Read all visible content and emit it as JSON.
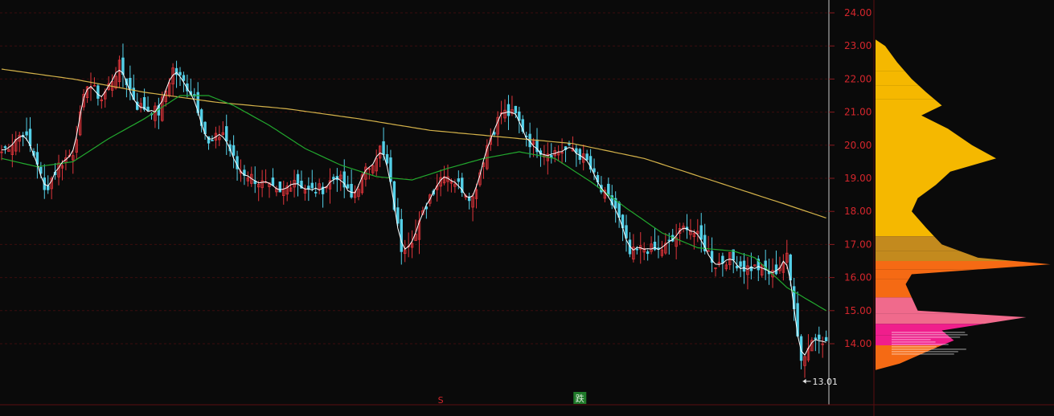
{
  "chart_data": {
    "type": "candlestick",
    "y_axis": {
      "ticks": [
        "24.00",
        "23.00",
        "22.00",
        "21.00",
        "20.00",
        "19.00",
        "18.00",
        "17.00",
        "16.00",
        "15.00",
        "14.00"
      ],
      "tick_values": [
        24,
        23,
        22,
        21,
        20,
        19,
        18,
        17,
        16,
        15,
        14
      ],
      "ylim": [
        13.0,
        24.3
      ],
      "grid": "dashed-horizontal"
    },
    "low_annotation": {
      "value": 13.01,
      "label": "13.01"
    },
    "markers": [
      {
        "label": "S",
        "color": "#d4262c",
        "bar_index": 123,
        "style": "text"
      },
      {
        "label": "跌",
        "color": "#d9e8d9",
        "bg": "#1f7a2a",
        "bar_index": 162,
        "style": "badge"
      }
    ],
    "colors": {
      "up_candle": "#e0353b",
      "down_candle": "#54d0e8",
      "close_line": "#ffffff",
      "ma_medium": "#22a82e",
      "ma_long": "#d4b24a",
      "axis_text": "#d4262c",
      "divider": "#c8c8c8"
    },
    "series": {
      "ma_long": {
        "points": [
          [
            0,
            22.3
          ],
          [
            20,
            22.0
          ],
          [
            40,
            21.6
          ],
          [
            60,
            21.3
          ],
          [
            80,
            21.1
          ],
          [
            100,
            20.8
          ],
          [
            120,
            20.45
          ],
          [
            140,
            20.25
          ],
          [
            160,
            20.05
          ],
          [
            180,
            19.6
          ],
          [
            200,
            18.9
          ],
          [
            220,
            18.2
          ],
          [
            231,
            17.8
          ]
        ]
      },
      "ma_medium": {
        "points": [
          [
            0,
            19.6
          ],
          [
            10,
            19.35
          ],
          [
            20,
            19.5
          ],
          [
            30,
            20.2
          ],
          [
            40,
            20.8
          ],
          [
            50,
            21.5
          ],
          [
            58,
            21.5
          ],
          [
            65,
            21.2
          ],
          [
            75,
            20.6
          ],
          [
            85,
            19.9
          ],
          [
            95,
            19.4
          ],
          [
            105,
            19.05
          ],
          [
            115,
            18.95
          ],
          [
            125,
            19.3
          ],
          [
            135,
            19.6
          ],
          [
            145,
            19.8
          ],
          [
            155,
            19.6
          ],
          [
            165,
            18.9
          ],
          [
            175,
            18.1
          ],
          [
            185,
            17.35
          ],
          [
            195,
            16.9
          ],
          [
            205,
            16.8
          ],
          [
            211,
            16.6
          ],
          [
            220,
            15.7
          ],
          [
            231,
            15.0
          ]
        ]
      },
      "profile_bins": [
        {
          "price": 23.0,
          "width": 0.08,
          "group": "gold"
        },
        {
          "price": 22.5,
          "width": 0.18,
          "group": "gold"
        },
        {
          "price": 22.0,
          "width": 0.3,
          "group": "gold"
        },
        {
          "price": 21.6,
          "width": 0.42,
          "group": "gold"
        },
        {
          "price": 21.2,
          "width": 0.55,
          "group": "gold"
        },
        {
          "price": 20.9,
          "width": 0.38,
          "group": "gold"
        },
        {
          "price": 20.5,
          "width": 0.6,
          "group": "gold"
        },
        {
          "price": 20.0,
          "width": 0.8,
          "group": "gold"
        },
        {
          "price": 19.6,
          "width": 1.0,
          "group": "gold"
        },
        {
          "price": 19.2,
          "width": 0.62,
          "group": "gold"
        },
        {
          "price": 18.8,
          "width": 0.5,
          "group": "gold"
        },
        {
          "price": 18.4,
          "width": 0.35,
          "group": "gold"
        },
        {
          "price": 18.0,
          "width": 0.3,
          "group": "gold"
        },
        {
          "price": 17.5,
          "width": 0.42,
          "group": "gold"
        },
        {
          "price": 17.0,
          "width": 0.55,
          "group": "tan"
        },
        {
          "price": 16.6,
          "width": 0.85,
          "group": "tan"
        },
        {
          "price": 16.4,
          "width": 1.45,
          "group": "orange"
        },
        {
          "price": 16.1,
          "width": 0.3,
          "group": "orange"
        },
        {
          "price": 15.8,
          "width": 0.25,
          "group": "orange"
        },
        {
          "price": 15.0,
          "width": 0.35,
          "group": "pink"
        },
        {
          "price": 14.8,
          "width": 1.25,
          "group": "pink"
        },
        {
          "price": 14.4,
          "width": 0.55,
          "group": "magenta"
        },
        {
          "price": 14.1,
          "width": 0.65,
          "group": "magenta"
        },
        {
          "price": 13.8,
          "width": 0.45,
          "group": "orange"
        },
        {
          "price": 13.4,
          "width": 0.2,
          "group": "orange"
        }
      ],
      "profile_colors": {
        "gold": "#f5b800",
        "tan": "#c38a1e",
        "orange": "#f56a14",
        "pink": "#f06a8c",
        "magenta": "#f01e8c"
      }
    }
  }
}
